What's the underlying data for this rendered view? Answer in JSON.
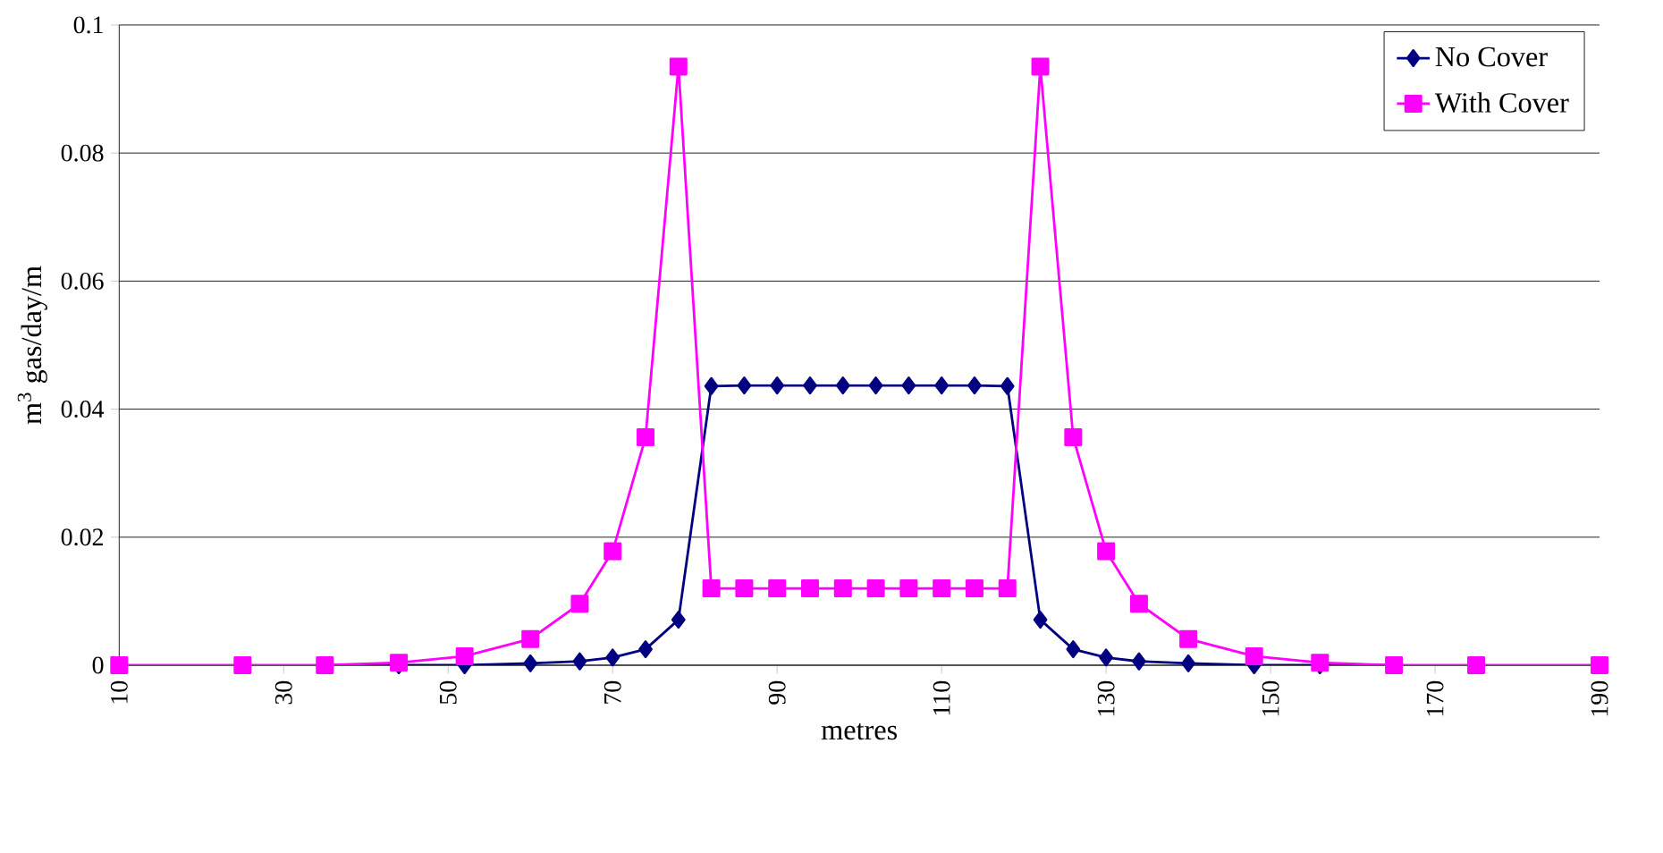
{
  "chart_data": {
    "type": "line",
    "xlabel": "metres",
    "ylabel": "m$^{3}$ gas/day/m",
    "x": [
      10,
      25,
      35,
      44,
      52,
      60,
      66,
      70,
      74,
      78,
      82,
      86,
      90,
      94,
      98,
      102,
      106,
      110,
      114,
      118,
      122,
      126,
      130,
      134,
      140,
      148,
      156,
      165,
      175,
      190
    ],
    "series": [
      {
        "name": "No Cover",
        "color": "#000080",
        "marker": "diamond",
        "values": [
          null,
          null,
          0,
          0,
          0,
          0.0003,
          0.0006,
          0.0012,
          0.0025,
          0.0071,
          0.0436,
          0.0437,
          0.0437,
          0.0437,
          0.0437,
          0.0437,
          0.0437,
          0.0437,
          0.0437,
          0.0436,
          0.0071,
          0.0025,
          0.0012,
          0.0006,
          0.0003,
          0,
          0,
          0,
          null,
          null
        ]
      },
      {
        "name": "With Cover",
        "color": "#ff00ff",
        "marker": "square",
        "values": [
          0,
          0,
          0,
          0.0004,
          0.0014,
          0.0041,
          0.0096,
          0.0178,
          0.0356,
          0.0935,
          0.012,
          0.012,
          0.012,
          0.012,
          0.012,
          0.012,
          0.012,
          0.012,
          0.012,
          0.012,
          0.0935,
          0.0356,
          0.0178,
          0.0096,
          0.0041,
          0.0014,
          0.0004,
          0,
          0,
          0
        ]
      }
    ],
    "xlim": [
      10,
      190
    ],
    "xticks": [
      10,
      30,
      50,
      70,
      90,
      110,
      130,
      150,
      170,
      190
    ],
    "ylim": [
      0,
      0.1
    ],
    "yticks": [
      0,
      0.02,
      0.04,
      0.06,
      0.08,
      0.1
    ],
    "grid": "y",
    "legend": "top right",
    "line_style": "solid"
  }
}
